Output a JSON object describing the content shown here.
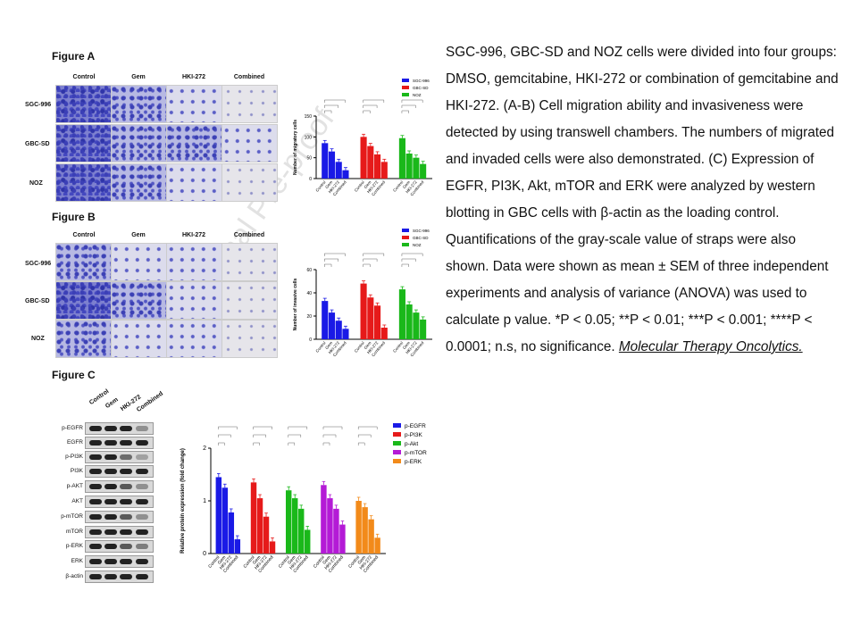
{
  "figure_a": {
    "title": "Figure A",
    "columns": [
      "Control",
      "Gem",
      "HKI-272",
      "Combined"
    ],
    "rows": [
      "SGC-996",
      "GBC-SD",
      "NOZ"
    ]
  },
  "figure_b": {
    "title": "Figure B",
    "columns": [
      "Control",
      "Gem",
      "HKI-272",
      "Combined"
    ],
    "rows": [
      "SGC-996",
      "GBC-SD",
      "NOZ"
    ]
  },
  "figure_c": {
    "title": "Figure C",
    "blot_columns": [
      "Control",
      "Gem",
      "HKI-272",
      "Combined"
    ],
    "blot_rows": [
      "p-EGFR",
      "EGFR",
      "p-PI3K",
      "PI3K",
      "p-AKT",
      "AKT",
      "p-mTOR",
      "mTOR",
      "p-ERK",
      "ERK",
      "β-actin"
    ]
  },
  "watermark": "Journal Pre-proof",
  "caption": {
    "text": "SGC-996, GBC-SD and NOZ cells were divided into four groups: DMSO, gemcitabine, HKI-272 or combination of gemcitabine and HKI-272. (A-B) Cell migration ability and invasiveness were detected by using transwell chambers. The numbers of migrated and invaded cells were also demonstrated. (C) Expression of EGFR, PI3K, Akt, mTOR and ERK were analyzed by western blotting in GBC cells with β-actin as the loading control. Quantifications of the gray-scale value of straps were also shown. Data were shown as mean ± SEM of three independent experiments and analysis of variance (ANOVA) was used to calculate p value. *P < 0.05; **P < 0.01; ***P < 0.001; ****P < 0.0001; n.s, no significance.",
    "journal": "Molecular Therapy Oncolytics."
  },
  "colors": {
    "blue": "#1a1ae6",
    "red": "#e61a1a",
    "green": "#1ab81a",
    "purple": "#b41ad6",
    "orange": "#f28a1a"
  },
  "chart_data": [
    {
      "id": "migration",
      "type": "bar",
      "title": "",
      "ylabel": "Number of migratory cells",
      "ylim": [
        0,
        150
      ],
      "yticks": [
        0,
        50,
        100,
        150
      ],
      "groups": [
        "SGC-996",
        "GBC-SD",
        "NOZ"
      ],
      "categories": [
        "Control",
        "Gem",
        "HKI-272",
        "Combined"
      ],
      "series": [
        {
          "name": "SGC-996",
          "color": "#1a1ae6",
          "values": [
            85,
            65,
            40,
            20
          ]
        },
        {
          "name": "GBC-SD",
          "color": "#e61a1a",
          "values": [
            100,
            78,
            58,
            40
          ]
        },
        {
          "name": "NOZ",
          "color": "#1ab81a",
          "values": [
            97,
            60,
            50,
            35
          ]
        }
      ],
      "legend": [
        "SGC-996",
        "GBC-SD",
        "NOZ"
      ]
    },
    {
      "id": "invasion",
      "type": "bar",
      "title": "",
      "ylabel": "Number of invasive cells",
      "ylim": [
        0,
        60
      ],
      "yticks": [
        0,
        20,
        40,
        60
      ],
      "groups": [
        "SGC-996",
        "GBC-SD",
        "NOZ"
      ],
      "categories": [
        "Control",
        "Gem",
        "HKI-272",
        "Combined"
      ],
      "series": [
        {
          "name": "SGC-996",
          "color": "#1a1ae6",
          "values": [
            33,
            23,
            16,
            9
          ]
        },
        {
          "name": "GBC-SD",
          "color": "#e61a1a",
          "values": [
            48,
            36,
            29,
            10
          ]
        },
        {
          "name": "NOZ",
          "color": "#1ab81a",
          "values": [
            43,
            30,
            23,
            17
          ]
        }
      ],
      "legend": [
        "SGC-996",
        "GBC-SD",
        "NOZ"
      ]
    },
    {
      "id": "protein",
      "type": "bar",
      "title": "",
      "ylabel": "Relative protein expression (fold change)",
      "ylim": [
        0,
        2
      ],
      "yticks": [
        0,
        1,
        2
      ],
      "groups": [
        "p-EGFR",
        "p-PI3K",
        "p-Akt",
        "p-mTOR",
        "p-ERK"
      ],
      "categories": [
        "Control",
        "Gem",
        "HKI-272",
        "Combined"
      ],
      "series": [
        {
          "name": "p-EGFR",
          "color": "#1a1ae6",
          "values": [
            1.45,
            1.25,
            0.78,
            0.27
          ]
        },
        {
          "name": "p-PI3K",
          "color": "#e61a1a",
          "values": [
            1.35,
            1.05,
            0.7,
            0.23
          ]
        },
        {
          "name": "p-Akt",
          "color": "#1ab81a",
          "values": [
            1.2,
            1.05,
            0.85,
            0.45
          ]
        },
        {
          "name": "p-mTOR",
          "color": "#b41ad6",
          "values": [
            1.3,
            1.05,
            0.85,
            0.55
          ]
        },
        {
          "name": "p-ERK",
          "color": "#f28a1a",
          "values": [
            1.0,
            0.88,
            0.65,
            0.3
          ]
        }
      ],
      "legend": [
        "p-EGFR",
        "p-PI3K",
        "p-Akt",
        "p-mTOR",
        "p-ERK"
      ]
    }
  ]
}
